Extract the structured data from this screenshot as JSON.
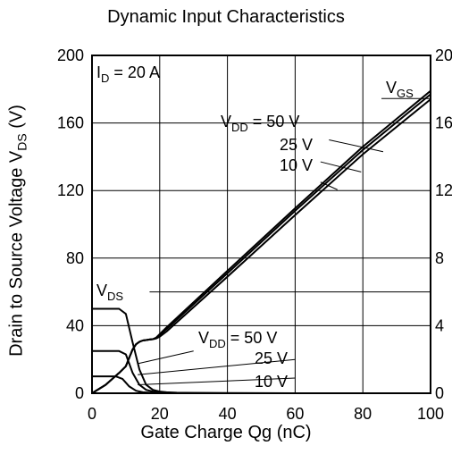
{
  "chart_data": {
    "type": "line",
    "title": "Dynamic Input Characteristics",
    "xlabel": "Gate Charge   Qg  (nC)",
    "ylabel_left": {
      "main": "Drain to Source Voltage   V",
      "sub": "DS",
      "unit": "  (V)"
    },
    "xlim": [
      0,
      100
    ],
    "ylim_left": [
      0,
      200
    ],
    "ylim_right": [
      0,
      20
    ],
    "x_ticks": [
      "0",
      "20",
      "40",
      "60",
      "80",
      "100"
    ],
    "y_ticks_left": [
      "0",
      "40",
      "80",
      "120",
      "160",
      "200"
    ],
    "y_ticks_right": [
      "0",
      "4",
      "8",
      "12",
      "16",
      "20"
    ],
    "grid": true,
    "condition": {
      "main": "I",
      "sub": "D",
      "rest": " = 20 A"
    },
    "labels": {
      "vgs": {
        "main": "V",
        "sub": "GS"
      },
      "vds": {
        "main": "V",
        "sub": "DS"
      },
      "vgs_group": {
        "first_main": "V",
        "first_sub": "DD",
        "first_rest": " = 50 V",
        "second": "25 V",
        "third": "10 V"
      },
      "vds_group": {
        "first_main": "V",
        "first_sub": "DD",
        "first_rest": " = 50 V",
        "second": "25 V",
        "third": "10 V"
      }
    },
    "series": [
      {
        "group": "VGS",
        "vdd": "50 V",
        "axis": "right",
        "x": [
          0,
          4,
          8,
          10,
          11,
          12,
          13,
          14,
          15,
          16,
          17,
          18,
          19,
          20,
          22,
          40,
          60,
          80,
          100
        ],
        "y": [
          0,
          0.5,
          1.2,
          1.6,
          2.1,
          2.6,
          2.9,
          3.05,
          3.12,
          3.15,
          3.18,
          3.2,
          3.3,
          3.5,
          3.9,
          7.25,
          10.95,
          14.6,
          17.9
        ]
      },
      {
        "group": "VGS",
        "vdd": "25 V",
        "axis": "right",
        "x": [
          0,
          4,
          8,
          10,
          11,
          12,
          13,
          14,
          15,
          16,
          17,
          18,
          19,
          20,
          22,
          40,
          60,
          80,
          100
        ],
        "y": [
          0,
          0.5,
          1.2,
          1.6,
          2.1,
          2.6,
          2.9,
          3.05,
          3.12,
          3.15,
          3.18,
          3.2,
          3.28,
          3.45,
          3.8,
          7.1,
          10.8,
          14.4,
          17.7
        ]
      },
      {
        "group": "VGS",
        "vdd": "10 V",
        "axis": "right",
        "x": [
          0,
          4,
          8,
          10,
          11,
          12,
          13,
          14,
          15,
          16,
          17,
          18,
          19,
          20,
          22,
          40,
          60,
          80,
          100
        ],
        "y": [
          0,
          0.5,
          1.2,
          1.6,
          2.1,
          2.6,
          2.9,
          3.05,
          3.12,
          3.15,
          3.18,
          3.2,
          3.25,
          3.35,
          3.65,
          6.9,
          10.55,
          14.15,
          17.4
        ]
      },
      {
        "group": "VDS",
        "vdd": "50 V",
        "axis": "left",
        "x": [
          0,
          8,
          10,
          12,
          14,
          16,
          18,
          20,
          22,
          25,
          30,
          40,
          60,
          80,
          100
        ],
        "y": [
          50,
          50,
          47,
          30,
          14,
          5,
          2,
          1,
          0.6,
          0.3,
          0.2,
          0.1,
          0,
          0,
          0
        ]
      },
      {
        "group": "VDS",
        "vdd": "25 V",
        "axis": "left",
        "x": [
          0,
          8,
          10,
          12,
          14,
          16,
          18,
          20,
          22,
          25,
          30,
          40,
          60,
          80,
          100
        ],
        "y": [
          25,
          25,
          23,
          12,
          5,
          2,
          1,
          0.5,
          0.3,
          0.2,
          0.1,
          0,
          0,
          0,
          0
        ]
      },
      {
        "group": "VDS",
        "vdd": "10 V",
        "axis": "left",
        "x": [
          0,
          7,
          9,
          11,
          13,
          15,
          17,
          19,
          22,
          25,
          30,
          40,
          60,
          80,
          100
        ],
        "y": [
          10,
          10,
          8.5,
          4,
          1.5,
          0.6,
          0.3,
          0.2,
          0.1,
          0,
          0,
          0,
          0,
          0,
          0
        ]
      }
    ]
  }
}
